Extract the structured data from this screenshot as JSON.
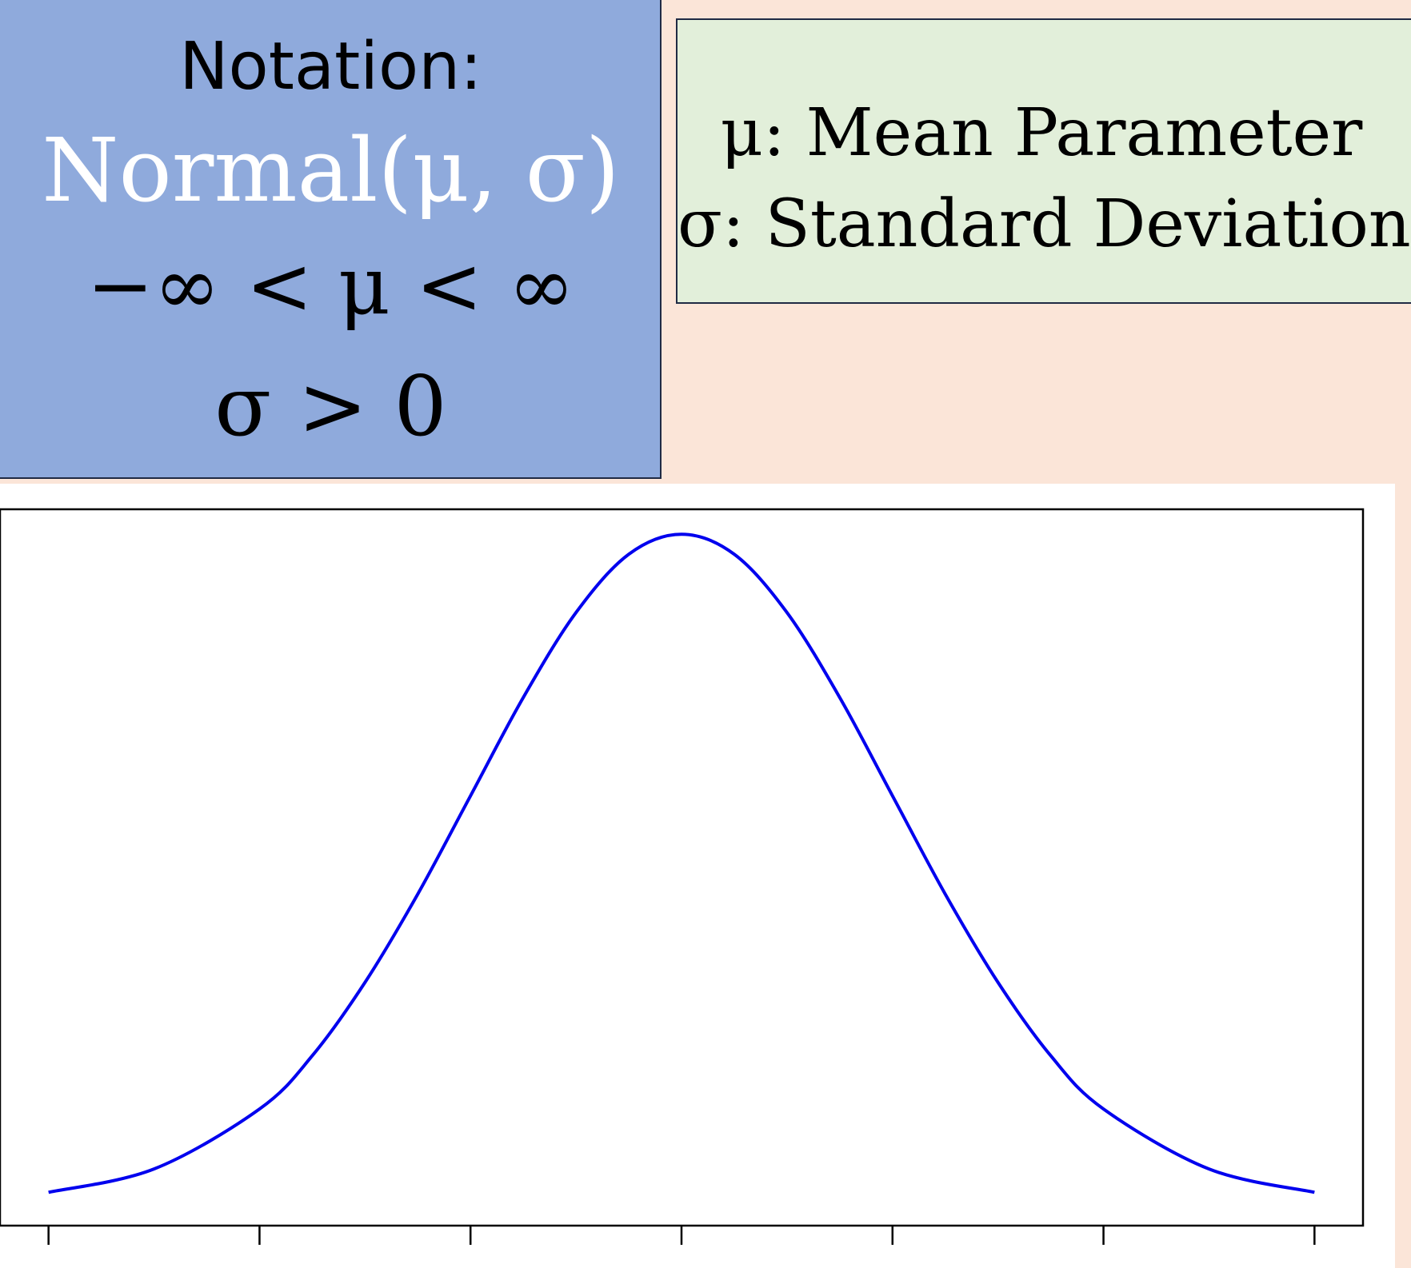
{
  "notation": {
    "title": "Notation:",
    "distribution": "Normal(μ, σ)",
    "mu_range": "−∞ < μ < ∞",
    "sigma_range": "σ > 0"
  },
  "parameters": {
    "mu_desc": "μ: Mean Parameter",
    "sigma_desc": "σ: Standard Deviation"
  },
  "colors": {
    "notation_bg": "#8faadc",
    "parameters_bg": "#e2efda",
    "page_bg": "#fbe5d8",
    "curve": "#0000ee"
  },
  "chart_data": {
    "type": "line",
    "title": "",
    "xlabel": "",
    "ylabel": "",
    "x_ticks": [
      -3,
      -2,
      -1,
      0,
      1,
      2,
      3
    ],
    "tick_labels_shown": false,
    "xlim": [
      -3.23,
      3.23
    ],
    "ylim": [
      -0.016,
      0.414
    ],
    "grid": false,
    "series": [
      {
        "x": [
          -3.0,
          -2.5,
          -2.0,
          -1.75,
          -1.5,
          -1.25,
          -1.0,
          -0.75,
          -0.5,
          -0.25,
          0.0,
          0.25,
          0.5,
          0.75,
          1.0,
          1.25,
          1.5,
          1.75,
          2.0,
          2.5,
          3.0
        ],
        "y": [
          0.004,
          0.018,
          0.054,
          0.086,
          0.13,
          0.183,
          0.242,
          0.301,
          0.352,
          0.387,
          0.399,
          0.387,
          0.352,
          0.301,
          0.242,
          0.183,
          0.13,
          0.086,
          0.054,
          0.018,
          0.004
        ]
      }
    ]
  }
}
